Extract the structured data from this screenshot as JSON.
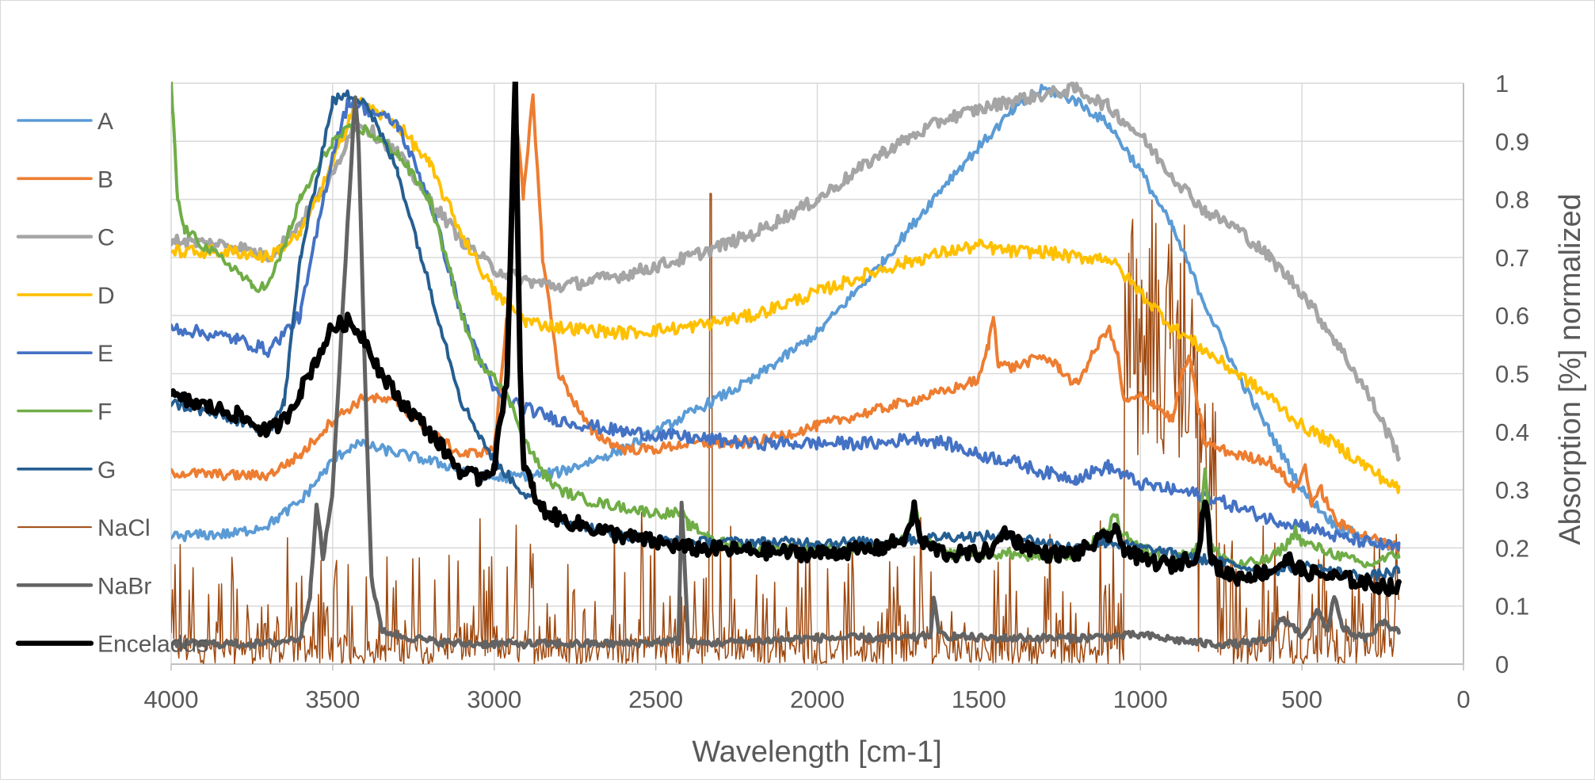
{
  "chart_data": {
    "type": "line",
    "title": "",
    "xlabel": "Wavelength [cm-1]",
    "ylabel": "Absorption [%] normalized",
    "xlim": [
      4000,
      0
    ],
    "ylim": [
      0,
      1
    ],
    "x_reversed": true,
    "y_axis_side": "right",
    "grid": true,
    "legend_position": "left",
    "x_ticks": [
      "4000",
      "3500",
      "3000",
      "2500",
      "2000",
      "1500",
      "1000",
      "500",
      "0"
    ],
    "y_ticks": [
      "0",
      "0.1",
      "0.2",
      "0.3",
      "0.4",
      "0.5",
      "0.6",
      "0.7",
      "0.8",
      "0.9",
      "1"
    ],
    "series": [
      {
        "name": "A",
        "color": "#5B9BD5",
        "width": 4,
        "noise": 0.004,
        "x": [
          4000,
          3800,
          3700,
          3600,
          3500,
          3430,
          3350,
          3200,
          3000,
          2800,
          2600,
          2400,
          2200,
          2000,
          1800,
          1600,
          1400,
          1300,
          1200,
          1100,
          1000,
          900,
          800,
          700,
          600,
          500,
          400,
          300,
          250,
          200
        ],
        "y": [
          0.22,
          0.225,
          0.24,
          0.28,
          0.35,
          0.38,
          0.37,
          0.35,
          0.32,
          0.33,
          0.37,
          0.43,
          0.49,
          0.57,
          0.69,
          0.83,
          0.95,
          0.99,
          0.97,
          0.93,
          0.85,
          0.75,
          0.62,
          0.5,
          0.4,
          0.3,
          0.24,
          0.215,
          0.205,
          0.2
        ]
      },
      {
        "name": "B",
        "color": "#ED7D31",
        "width": 4,
        "noise": 0.004,
        "x": [
          4000,
          3800,
          3700,
          3600,
          3500,
          3400,
          3300,
          3200,
          3100,
          3000,
          2960,
          2930,
          2910,
          2880,
          2850,
          2800,
          2700,
          2600,
          2500,
          2400,
          2200,
          2000,
          1800,
          1600,
          1500,
          1470,
          1455,
          1440,
          1400,
          1300,
          1250,
          1200,
          1150,
          1100,
          1070,
          1050,
          1000,
          960,
          900,
          870,
          850,
          800,
          700,
          600,
          520,
          490,
          470,
          440,
          400,
          380,
          300,
          200
        ],
        "y": [
          0.33,
          0.325,
          0.325,
          0.36,
          0.42,
          0.46,
          0.45,
          0.4,
          0.36,
          0.37,
          0.6,
          0.93,
          0.8,
          0.98,
          0.7,
          0.5,
          0.4,
          0.37,
          0.37,
          0.38,
          0.38,
          0.41,
          0.44,
          0.47,
          0.49,
          0.55,
          0.6,
          0.52,
          0.51,
          0.53,
          0.51,
          0.48,
          0.53,
          0.58,
          0.53,
          0.45,
          0.46,
          0.45,
          0.42,
          0.5,
          0.53,
          0.38,
          0.36,
          0.35,
          0.3,
          0.34,
          0.28,
          0.3,
          0.25,
          0.24,
          0.22,
          0.2
        ]
      },
      {
        "name": "C",
        "color": "#A5A5A5",
        "width": 5,
        "noise": 0.005,
        "x": [
          4000,
          3800,
          3700,
          3600,
          3500,
          3430,
          3300,
          3200,
          3100,
          3000,
          2900,
          2800,
          2600,
          2400,
          2200,
          2000,
          1800,
          1600,
          1400,
          1300,
          1200,
          1100,
          1000,
          900,
          800,
          700,
          600,
          500,
          400,
          300,
          200
        ],
        "y": [
          0.73,
          0.72,
          0.7,
          0.76,
          0.84,
          0.94,
          0.88,
          0.8,
          0.73,
          0.68,
          0.66,
          0.65,
          0.67,
          0.7,
          0.74,
          0.8,
          0.88,
          0.94,
          0.97,
          0.98,
          0.99,
          0.96,
          0.91,
          0.84,
          0.78,
          0.75,
          0.7,
          0.64,
          0.56,
          0.47,
          0.36
        ]
      },
      {
        "name": "D",
        "color": "#FFC000",
        "width": 4,
        "noise": 0.005,
        "x": [
          4000,
          3800,
          3700,
          3600,
          3500,
          3430,
          3300,
          3200,
          3100,
          3000,
          2900,
          2800,
          2600,
          2400,
          2200,
          2000,
          1800,
          1600,
          1500,
          1400,
          1300,
          1200,
          1100,
          1000,
          900,
          800,
          700,
          600,
          500,
          400,
          300,
          200
        ],
        "y": [
          0.71,
          0.71,
          0.7,
          0.74,
          0.86,
          0.97,
          0.93,
          0.86,
          0.74,
          0.64,
          0.59,
          0.58,
          0.57,
          0.58,
          0.6,
          0.64,
          0.68,
          0.71,
          0.72,
          0.71,
          0.71,
          0.7,
          0.7,
          0.64,
          0.58,
          0.54,
          0.5,
          0.46,
          0.41,
          0.38,
          0.34,
          0.3
        ]
      },
      {
        "name": "E",
        "color": "#4472C4",
        "width": 4,
        "noise": 0.005,
        "x": [
          4000,
          3800,
          3700,
          3600,
          3500,
          3450,
          3300,
          3200,
          3100,
          3000,
          2900,
          2800,
          2600,
          2400,
          2200,
          2000,
          1800,
          1700,
          1600,
          1500,
          1400,
          1300,
          1200,
          1100,
          1000,
          900,
          800,
          700,
          600,
          500,
          400,
          300,
          200
        ],
        "y": [
          0.58,
          0.56,
          0.54,
          0.6,
          0.88,
          0.97,
          0.93,
          0.8,
          0.6,
          0.47,
          0.44,
          0.42,
          0.4,
          0.39,
          0.38,
          0.38,
          0.38,
          0.39,
          0.38,
          0.36,
          0.35,
          0.33,
          0.32,
          0.34,
          0.31,
          0.3,
          0.29,
          0.27,
          0.25,
          0.24,
          0.22,
          0.21,
          0.2
        ]
      },
      {
        "name": "F",
        "color": "#70AD47",
        "width": 4,
        "noise": 0.004,
        "x": [
          4000,
          3995,
          3980,
          3960,
          3900,
          3800,
          3750,
          3700,
          3650,
          3600,
          3500,
          3450,
          3400,
          3300,
          3200,
          3150,
          3100,
          3050,
          3000,
          2950,
          2900,
          2850,
          2800,
          2700,
          2600,
          2500,
          2420,
          2400,
          2300,
          2200,
          2000,
          1800,
          1720,
          1700,
          1680,
          1600,
          1500,
          1400,
          1300,
          1200,
          1100,
          1080,
          1060,
          1000,
          900,
          820,
          800,
          780,
          700,
          600,
          540,
          520,
          500,
          400,
          300,
          200
        ],
        "y": [
          1.0,
          0.95,
          0.8,
          0.75,
          0.72,
          0.68,
          0.65,
          0.65,
          0.72,
          0.8,
          0.9,
          0.92,
          0.92,
          0.88,
          0.8,
          0.7,
          0.6,
          0.52,
          0.5,
          0.45,
          0.38,
          0.33,
          0.3,
          0.28,
          0.27,
          0.26,
          0.26,
          0.24,
          0.21,
          0.2,
          0.2,
          0.2,
          0.22,
          0.28,
          0.22,
          0.19,
          0.19,
          0.19,
          0.18,
          0.19,
          0.23,
          0.26,
          0.23,
          0.2,
          0.18,
          0.2,
          0.34,
          0.2,
          0.17,
          0.18,
          0.21,
          0.23,
          0.21,
          0.19,
          0.17,
          0.19
        ]
      },
      {
        "name": "G",
        "color": "#255E91",
        "width": 4,
        "noise": 0.004,
        "x": [
          4000,
          3800,
          3700,
          3650,
          3600,
          3500,
          3450,
          3400,
          3300,
          3200,
          3100,
          3000,
          2900,
          2800,
          2600,
          2400,
          2200,
          2000,
          1800,
          1600,
          1500,
          1400,
          1300,
          1200,
          1100,
          1000,
          900,
          800,
          700,
          600,
          500,
          400,
          300,
          200
        ],
        "y": [
          0.45,
          0.42,
          0.4,
          0.45,
          0.7,
          0.97,
          0.98,
          0.97,
          0.85,
          0.65,
          0.45,
          0.35,
          0.29,
          0.25,
          0.22,
          0.21,
          0.21,
          0.21,
          0.21,
          0.22,
          0.22,
          0.22,
          0.21,
          0.2,
          0.21,
          0.2,
          0.19,
          0.18,
          0.17,
          0.16,
          0.17,
          0.16,
          0.15,
          0.16
        ]
      },
      {
        "name": "NaCl",
        "color": "#9E480E",
        "width": 1.5,
        "noise": 0,
        "spiky": true,
        "x": [
          4000,
          3000,
          2000,
          1000,
          800,
          200
        ],
        "y": [
          0.1,
          0.1,
          0.1,
          0.1,
          0.1,
          0.1
        ]
      },
      {
        "name": "NaBr",
        "color": "#636363",
        "width": 5,
        "noise": 0.003,
        "x": [
          4000,
          3800,
          3700,
          3600,
          3570,
          3550,
          3530,
          3500,
          3460,
          3430,
          3420,
          3400,
          3380,
          3350,
          3300,
          3200,
          3100,
          3000,
          2600,
          2430,
          2420,
          2400,
          2390,
          2000,
          1700,
          1650,
          1640,
          1620,
          1500,
          1200,
          1000,
          800,
          700,
          600,
          560,
          500,
          450,
          420,
          400,
          380,
          350,
          300,
          250,
          200
        ],
        "y": [
          0.035,
          0.035,
          0.035,
          0.045,
          0.12,
          0.28,
          0.18,
          0.3,
          0.7,
          0.98,
          0.9,
          0.5,
          0.15,
          0.06,
          0.05,
          0.04,
          0.035,
          0.035,
          0.035,
          0.04,
          0.28,
          0.04,
          0.035,
          0.045,
          0.045,
          0.05,
          0.11,
          0.05,
          0.045,
          0.045,
          0.05,
          0.035,
          0.035,
          0.04,
          0.08,
          0.05,
          0.09,
          0.06,
          0.12,
          0.07,
          0.05,
          0.045,
          0.07,
          0.06
        ]
      },
      {
        "name": "Enceladus",
        "color": "#000000",
        "width": 7,
        "noise": 0.006,
        "x": [
          4000,
          3800,
          3700,
          3650,
          3600,
          3500,
          3450,
          3400,
          3350,
          3300,
          3200,
          3100,
          3050,
          3000,
          2960,
          2935,
          2920,
          2910,
          2880,
          2860,
          2800,
          2600,
          2400,
          2000,
          1800,
          1720,
          1700,
          1680,
          1600,
          1500,
          1450,
          1420,
          1380,
          1300,
          1200,
          1100,
          1080,
          1050,
          1000,
          900,
          820,
          800,
          780,
          750,
          700,
          600,
          540,
          500,
          400,
          300,
          200
        ],
        "y": [
          0.46,
          0.43,
          0.4,
          0.42,
          0.47,
          0.58,
          0.59,
          0.56,
          0.5,
          0.46,
          0.4,
          0.33,
          0.32,
          0.34,
          0.5,
          1.0,
          0.5,
          0.35,
          0.3,
          0.27,
          0.25,
          0.22,
          0.2,
          0.19,
          0.2,
          0.22,
          0.27,
          0.21,
          0.19,
          0.19,
          0.2,
          0.23,
          0.21,
          0.19,
          0.19,
          0.22,
          0.23,
          0.2,
          0.18,
          0.17,
          0.19,
          0.29,
          0.18,
          0.16,
          0.15,
          0.16,
          0.18,
          0.16,
          0.15,
          0.14,
          0.13
        ]
      }
    ]
  }
}
